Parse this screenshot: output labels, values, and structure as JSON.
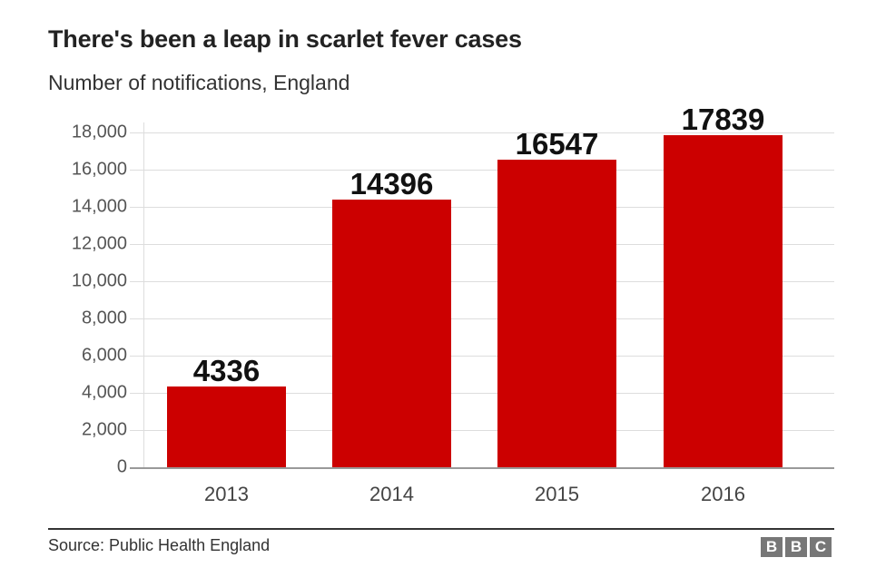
{
  "header": {
    "title": "There's been a leap in scarlet fever cases",
    "subtitle": "Number of notifications, England"
  },
  "footer": {
    "source": "Source: Public Health England",
    "logo_letters": [
      "B",
      "B",
      "C"
    ]
  },
  "colors": {
    "bar": "#cc0000",
    "grid": "#dddddd",
    "text": "#222222"
  },
  "chart_data": {
    "type": "bar",
    "title": "There's been a leap in scarlet fever cases",
    "subtitle": "Number of notifications, England",
    "categories": [
      "2013",
      "2014",
      "2015",
      "2016"
    ],
    "values": [
      4336,
      14396,
      16547,
      17839
    ],
    "data_labels": [
      "4336",
      "14396",
      "16547",
      "17839"
    ],
    "xlabel": "",
    "ylabel": "",
    "ylim": [
      0,
      18000
    ],
    "yticks": [
      0,
      2000,
      4000,
      6000,
      8000,
      10000,
      12000,
      14000,
      16000,
      18000
    ],
    "ytick_labels": [
      "0",
      "2,000",
      "4,000",
      "6,000",
      "8,000",
      "10,000",
      "12,000",
      "14,000",
      "16,000",
      "18,000"
    ],
    "grid": true,
    "legend": null,
    "source": "Source: Public Health England"
  }
}
